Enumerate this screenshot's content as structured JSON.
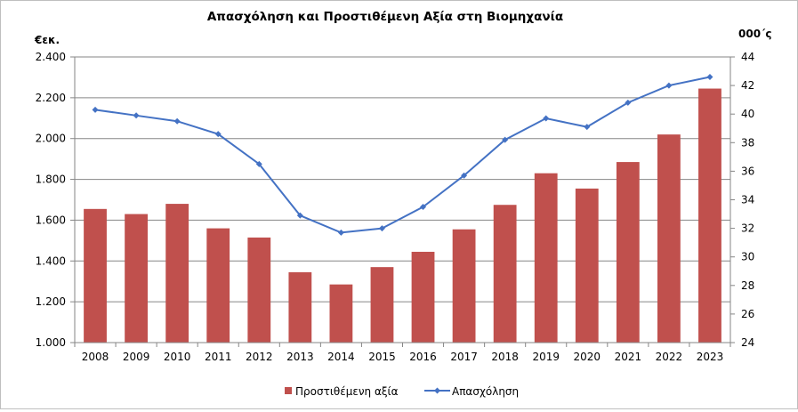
{
  "chart_data": {
    "type": "bar",
    "title": "Απασχόληση και Προστιθέμενη Αξία στη Βιομηχανία",
    "left_unit": "€εκ.",
    "right_unit": "000΄ς",
    "categories": [
      "2008",
      "2009",
      "2010",
      "2011",
      "2012",
      "2013",
      "2014",
      "2015",
      "2016",
      "2017",
      "2018",
      "2019",
      "2020",
      "2021",
      "2022",
      "2023"
    ],
    "series": [
      {
        "name": "Προστιθέμενη αξία",
        "type": "bar",
        "axis": "left",
        "color": "#c0504d",
        "values": [
          1655,
          1630,
          1680,
          1560,
          1515,
          1345,
          1285,
          1370,
          1445,
          1555,
          1675,
          1830,
          1755,
          1885,
          2020,
          2245
        ]
      },
      {
        "name": "Απασχόληση",
        "type": "line",
        "axis": "right",
        "color": "#4472c4",
        "values": [
          40.3,
          39.9,
          39.5,
          38.6,
          36.5,
          32.9,
          31.7,
          32.0,
          33.5,
          35.7,
          38.2,
          39.7,
          39.1,
          40.8,
          42.0,
          42.6
        ]
      }
    ],
    "left_axis": {
      "min": 1000,
      "max": 2400,
      "step": 200,
      "tick_labels": [
        "1.000",
        "1.200",
        "1.400",
        "1.600",
        "1.800",
        "2.000",
        "2.200",
        "2.400"
      ]
    },
    "right_axis": {
      "min": 24,
      "max": 44,
      "step": 2,
      "tick_labels": [
        "24",
        "26",
        "28",
        "30",
        "32",
        "34",
        "36",
        "38",
        "40",
        "42",
        "44"
      ]
    },
    "grid": true,
    "legend_position": "bottom"
  }
}
